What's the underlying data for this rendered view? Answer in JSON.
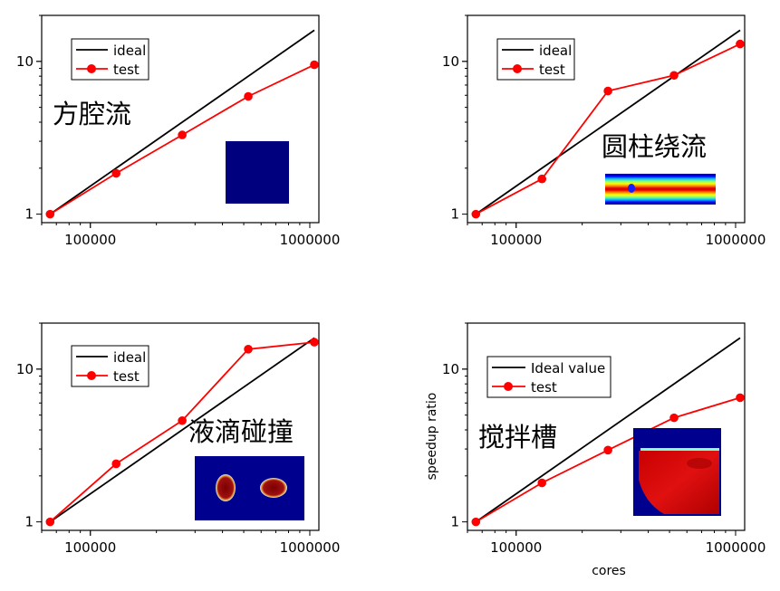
{
  "figure": {
    "xlabel": "cores",
    "ylabel": "speedup ratio"
  },
  "chart_data": [
    {
      "type": "line",
      "annotation": "方腔流",
      "x_scale": "log",
      "y_scale": "log",
      "x_ticks": [
        "100000",
        "1000000"
      ],
      "y_ticks": [
        "1",
        "10"
      ],
      "series": [
        {
          "name": "ideal",
          "color": "#000000",
          "x": [
            65536,
            1048576
          ],
          "y": [
            1,
            16
          ]
        },
        {
          "name": "test",
          "color": "#ff0000",
          "x": [
            65536,
            131072,
            262144,
            524288,
            1048576
          ],
          "y": [
            1,
            1.85,
            3.3,
            5.9,
            9.5
          ]
        }
      ],
      "inset": {
        "kind": "solid-square",
        "color": "#00007f"
      }
    },
    {
      "type": "line",
      "annotation": "圆柱绕流",
      "x_scale": "log",
      "y_scale": "log",
      "x_ticks": [
        "100000",
        "1000000"
      ],
      "y_ticks": [
        "1",
        "10"
      ],
      "series": [
        {
          "name": "ideal",
          "color": "#000000",
          "x": [
            65536,
            1048576
          ],
          "y": [
            1,
            16
          ]
        },
        {
          "name": "test",
          "color": "#ff0000",
          "x": [
            65536,
            131072,
            262144,
            524288,
            1048576
          ],
          "y": [
            1,
            1.7,
            6.4,
            8.1,
            13
          ]
        }
      ],
      "inset": {
        "kind": "channel-flow"
      }
    },
    {
      "type": "line",
      "annotation": "液滴碰撞",
      "x_scale": "log",
      "y_scale": "log",
      "x_ticks": [
        "100000",
        "1000000"
      ],
      "y_ticks": [
        "1",
        "10"
      ],
      "series": [
        {
          "name": "ideal",
          "color": "#000000",
          "x": [
            65536,
            1048576
          ],
          "y": [
            1,
            16
          ]
        },
        {
          "name": "test",
          "color": "#ff0000",
          "x": [
            65536,
            131072,
            262144,
            524288,
            1048576
          ],
          "y": [
            1,
            2.4,
            4.6,
            13.5,
            15
          ]
        }
      ],
      "inset": {
        "kind": "two-droplets"
      }
    },
    {
      "type": "line",
      "annotation": "搅拌槽",
      "x_scale": "log",
      "y_scale": "log",
      "x_ticks": [
        "100000",
        "1000000"
      ],
      "y_ticks": [
        "1",
        "10"
      ],
      "series": [
        {
          "name": "Ideal value",
          "color": "#000000",
          "x": [
            65536,
            1048576
          ],
          "y": [
            1,
            16
          ]
        },
        {
          "name": "test",
          "color": "#ff0000",
          "x": [
            65536,
            131072,
            262144,
            524288,
            1048576
          ],
          "y": [
            1,
            1.8,
            2.95,
            4.8,
            6.5
          ]
        }
      ],
      "inset": {
        "kind": "stirred-tank"
      }
    }
  ]
}
